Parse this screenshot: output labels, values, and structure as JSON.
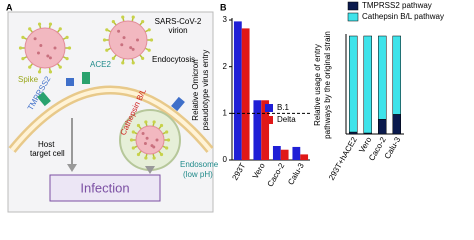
{
  "panel_labels": [
    "A",
    "B"
  ],
  "panel_a": {
    "virion": [
      "SARS-CoV-2",
      "virion"
    ],
    "spike": "Spike",
    "ace2": "ACE2",
    "tmprss2": "TMPRSS2",
    "endocytosis": "Endocytosis",
    "cathepsin": "Cathepsin B/L",
    "host": [
      "Host",
      "target cell"
    ],
    "endosome": [
      "Endosome",
      "(low pH)"
    ],
    "infection": "Infection"
  },
  "chart_data": [
    {
      "type": "bar",
      "ylabel": [
        "Relative Omicron",
        "pseudotype virus entry"
      ],
      "categories": [
        "293T",
        "Vero",
        "Caco-2",
        "Calu-3"
      ],
      "series": [
        {
          "name": "B.1",
          "color": "#1f1fd6",
          "values": [
            2.97,
            1.28,
            0.3,
            0.28
          ]
        },
        {
          "name": "Delta",
          "color": "#e01818",
          "values": [
            2.82,
            1.28,
            0.22,
            0.12
          ]
        }
      ],
      "ylim": [
        0,
        3
      ],
      "yticks": [
        0,
        1,
        2,
        3
      ],
      "reference_line": 1,
      "legend": "center-right"
    },
    {
      "type": "stacked_bar",
      "ylabel": [
        "Relative usage of entry",
        "pathways by the original strain"
      ],
      "categories": [
        "293T+hACE2",
        "Vero",
        "Caco-2",
        "Calu-3"
      ],
      "series": [
        {
          "name": "TMPRSS2 pathway",
          "color": "#0b1a4d",
          "values": [
            2,
            1,
            15,
            20
          ]
        },
        {
          "name": "Cathepsin B/L pathway",
          "color": "#3fe3ea",
          "values": [
            98,
            99,
            85,
            80
          ]
        }
      ],
      "ylim": [
        0,
        100
      ],
      "legend": "top-right"
    }
  ]
}
